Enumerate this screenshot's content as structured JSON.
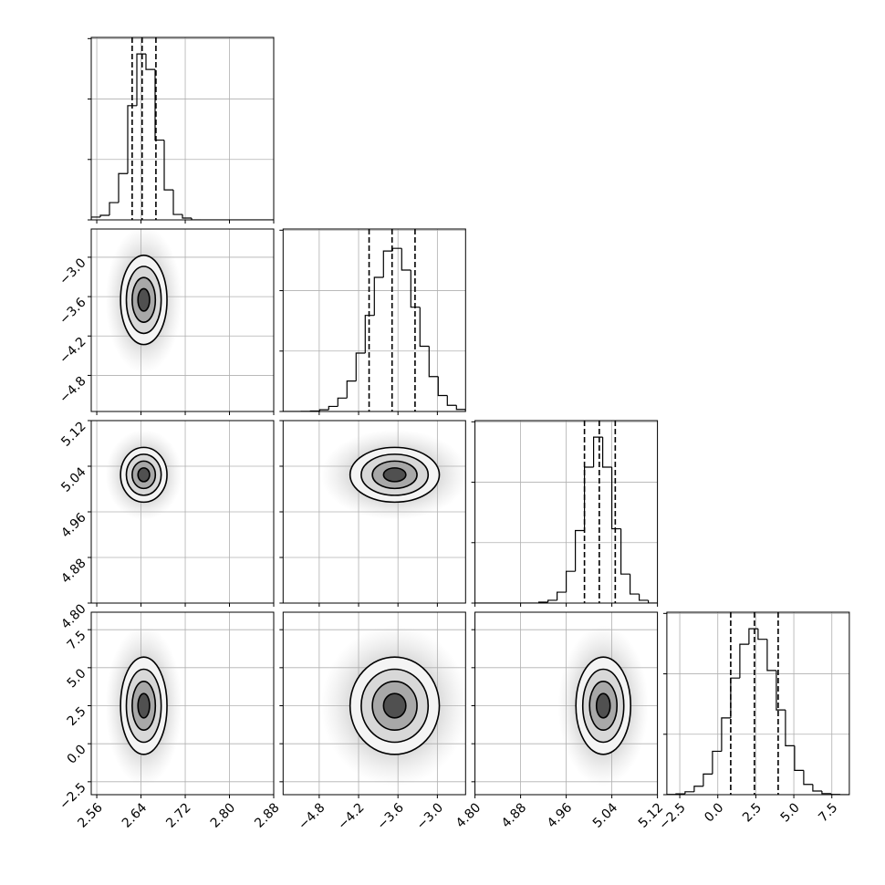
{
  "chart_data": {
    "type": "corner",
    "grid": true,
    "color": "#000000",
    "levels": [
      0.5,
      1,
      1.5,
      2
    ],
    "params": [
      {
        "lim": [
          2.55,
          2.88
        ],
        "ticks": [
          {
            "value": 2.56,
            "label": "2.56"
          },
          {
            "value": 2.64,
            "label": "2.64"
          },
          {
            "value": 2.72,
            "label": "2.72"
          },
          {
            "value": 2.8,
            "label": "2.80"
          },
          {
            "value": 2.88,
            "label": "2.88"
          }
        ]
      },
      {
        "lim": [
          -5.35,
          -2.57
        ],
        "ticks": [
          {
            "value": -4.8,
            "label": "−4.8"
          },
          {
            "value": -4.2,
            "label": "−4.2"
          },
          {
            "value": -3.6,
            "label": "−3.6"
          },
          {
            "value": -3.0,
            "label": "−3.0"
          }
        ]
      },
      {
        "lim": [
          4.8,
          5.12
        ],
        "ticks": [
          {
            "value": 4.8,
            "label": "4.80"
          },
          {
            "value": 4.88,
            "label": "4.88"
          },
          {
            "value": 4.96,
            "label": "4.96"
          },
          {
            "value": 5.04,
            "label": "5.04"
          },
          {
            "value": 5.12,
            "label": "5.12"
          }
        ]
      },
      {
        "lim": [
          -3.35,
          8.65
        ],
        "ticks": [
          {
            "value": -2.5,
            "label": "−2.5"
          },
          {
            "value": 0,
            "label": "0.0"
          },
          {
            "value": 2.5,
            "label": "2.5"
          },
          {
            "value": 5,
            "label": "5.0"
          },
          {
            "value": 7.5,
            "label": "7.5"
          }
        ]
      }
    ],
    "histograms": [
      {
        "bins": [
          2.55,
          2.5665,
          2.583,
          2.5995,
          2.616,
          2.6325,
          2.649,
          2.6655,
          2.682,
          2.6985,
          2.715,
          2.7315,
          2.748,
          2.7645,
          2.781,
          2.7975,
          2.814,
          2.8305,
          2.847,
          2.8635,
          2.88
        ],
        "values": [
          23,
          38,
          143,
          383,
          945,
          1373,
          1245,
          660,
          248,
          45,
          15,
          0,
          0,
          0,
          0,
          0,
          0,
          0,
          0,
          0
        ],
        "quantiles": [
          2.624,
          2.642,
          2.667
        ],
        "ylim": [
          0,
          1510
        ],
        "yticks": [
          0,
          500,
          1000,
          1500
        ]
      },
      {
        "bins": [
          -5.35,
          -5.211,
          -5.072,
          -4.933,
          -4.794,
          -4.655,
          -4.516,
          -4.377,
          -4.238,
          -4.099,
          -3.96,
          -3.821,
          -3.682,
          -3.543,
          -3.404,
          -3.265,
          -3.126,
          -2.987,
          -2.848,
          -2.709,
          -2.57
        ],
        "values": [
          0,
          0,
          1,
          4,
          14,
          42,
          111,
          252,
          483,
          795,
          1110,
          1328,
          1350,
          1170,
          863,
          540,
          289,
          132,
          51,
          17
        ],
        "quantiles": [
          -4.04,
          -3.69,
          -3.34
        ],
        "ylim": [
          0,
          1510
        ],
        "yticks": [
          0,
          500,
          1000,
          1500
        ]
      },
      {
        "bins": [
          4.8,
          4.816,
          4.832,
          4.848,
          4.864,
          4.88,
          4.896,
          4.912,
          4.928,
          4.944,
          4.96,
          4.976,
          4.992,
          5.008,
          5.024,
          5.04,
          5.056,
          5.072,
          5.088,
          5.104,
          5.12
        ],
        "values": [
          0,
          0,
          0,
          0,
          0,
          0,
          0,
          8,
          23,
          90,
          263,
          600,
          1125,
          1373,
          1125,
          615,
          240,
          75,
          23,
          0
        ],
        "quantiles": [
          4.992,
          5.018,
          5.046
        ],
        "ylim": [
          0,
          1510
        ],
        "yticks": [
          0,
          500,
          1000,
          1500
        ]
      },
      {
        "bins": [
          -3.35,
          -2.75,
          -2.15,
          -1.55,
          -0.95,
          -0.35,
          0.25,
          0.85,
          1.45,
          2.05,
          2.65,
          3.25,
          3.85,
          4.45,
          5.05,
          5.65,
          6.25,
          6.85,
          7.45,
          8.05,
          8.65
        ],
        "values": [
          2,
          7,
          24,
          70,
          171,
          359,
          635,
          965,
          1245,
          1373,
          1286,
          1028,
          701,
          405,
          201,
          85,
          30,
          9,
          2,
          0
        ],
        "quantiles": [
          0.85,
          2.41,
          3.97
        ],
        "ylim": [
          0,
          1510
        ],
        "yticks": [
          0,
          500,
          1000,
          1500
        ]
      }
    ],
    "pairs": [
      {
        "center": [
          2.645,
          -3.65
        ],
        "sigma": [
          0.021,
          0.34
        ]
      },
      {
        "center": [
          2.645,
          5.025
        ],
        "sigma": [
          0.021,
          0.024
        ]
      },
      {
        "center": [
          -3.65,
          5.025
        ],
        "sigma": [
          0.34,
          0.024
        ]
      },
      {
        "center": [
          2.645,
          2.5
        ],
        "sigma": [
          0.021,
          1.6
        ]
      },
      {
        "center": [
          -3.65,
          2.5
        ],
        "sigma": [
          0.34,
          1.6
        ]
      },
      {
        "center": [
          5.025,
          2.5
        ],
        "sigma": [
          0.024,
          1.6
        ]
      }
    ]
  }
}
